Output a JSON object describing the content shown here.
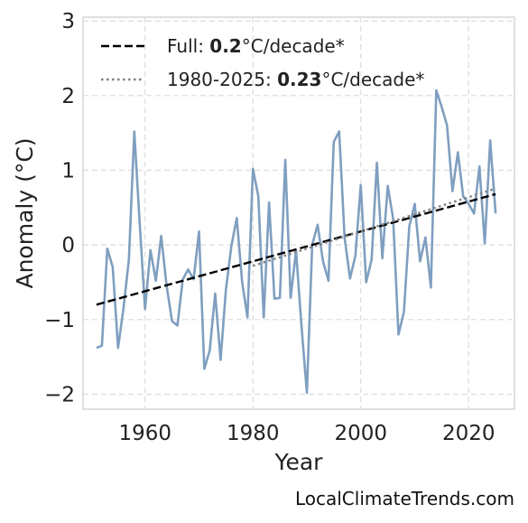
{
  "chart_data": {
    "type": "line",
    "xlabel": "Year",
    "ylabel": "Anomaly (°C)",
    "xlim": [
      1948.5,
      2028.5
    ],
    "ylim": [
      -2.2,
      3.05
    ],
    "xticks": [
      1960,
      1980,
      2000,
      2020
    ],
    "yticks": [
      -2,
      -1,
      0,
      1,
      2,
      3
    ],
    "ytick_labels": [
      "−2",
      "−1",
      "0",
      "1",
      "2",
      "3"
    ],
    "grid": true,
    "legend_position": "top-left",
    "series": [
      {
        "color": "#7f9fc0",
        "x": [
          1951,
          1952,
          1953,
          1954,
          1955,
          1956,
          1957,
          1958,
          1959,
          1960,
          1961,
          1962,
          1963,
          1964,
          1965,
          1966,
          1967,
          1968,
          1969,
          1970,
          1971,
          1972,
          1973,
          1974,
          1975,
          1976,
          1977,
          1978,
          1979,
          1980,
          1981,
          1982,
          1983,
          1984,
          1985,
          1986,
          1987,
          1988,
          1989,
          1990,
          1991,
          1992,
          1993,
          1994,
          1995,
          1996,
          1997,
          1998,
          1999,
          2000,
          2001,
          2002,
          2003,
          2004,
          2005,
          2006,
          2007,
          2008,
          2009,
          2010,
          2011,
          2012,
          2013,
          2014,
          2015,
          2016,
          2017,
          2018,
          2019,
          2020,
          2021,
          2022,
          2023,
          2024,
          2025
        ],
        "y": [
          -1.38,
          -1.35,
          -0.05,
          -0.3,
          -1.38,
          -0.85,
          -0.2,
          1.52,
          0.3,
          -0.86,
          -0.07,
          -0.48,
          0.12,
          -0.55,
          -1.02,
          -1.08,
          -0.46,
          -0.33,
          -0.46,
          0.18,
          -1.66,
          -1.41,
          -0.65,
          -1.54,
          -0.6,
          -0.02,
          0.36,
          -0.5,
          -0.97,
          1.02,
          0.65,
          -0.97,
          0.57,
          -0.72,
          -0.71,
          1.14,
          -0.71,
          -0.08,
          -1.08,
          -1.98,
          0.0,
          0.27,
          -0.22,
          -0.48,
          1.38,
          1.52,
          0.1,
          -0.45,
          -0.15,
          0.8,
          -0.5,
          -0.2,
          1.1,
          -0.18,
          0.79,
          0.35,
          -1.2,
          -0.9,
          0.25,
          0.55,
          -0.22,
          0.1,
          -0.57,
          2.07,
          1.85,
          1.6,
          0.72,
          1.24,
          0.65,
          0.55,
          0.42,
          1.05,
          0.02,
          1.4,
          0.42
        ]
      },
      {
        "name": "Full",
        "style": "dashed",
        "color": "#000000",
        "x": [
          1951,
          2025
        ],
        "y": [
          -0.8,
          0.68
        ]
      },
      {
        "name": "1980-2025",
        "style": "dotted",
        "color": "#808080",
        "x": [
          1980,
          2025
        ],
        "y": [
          -0.28,
          0.755
        ]
      }
    ],
    "legend": [
      {
        "prefix": "Full: ",
        "value": "0.2",
        "suffix": "°C/decade*"
      },
      {
        "prefix": "1980-2025: ",
        "value": "0.23",
        "suffix": "°C/decade*"
      }
    ]
  },
  "watermark": "LocalClimateTrends.com"
}
